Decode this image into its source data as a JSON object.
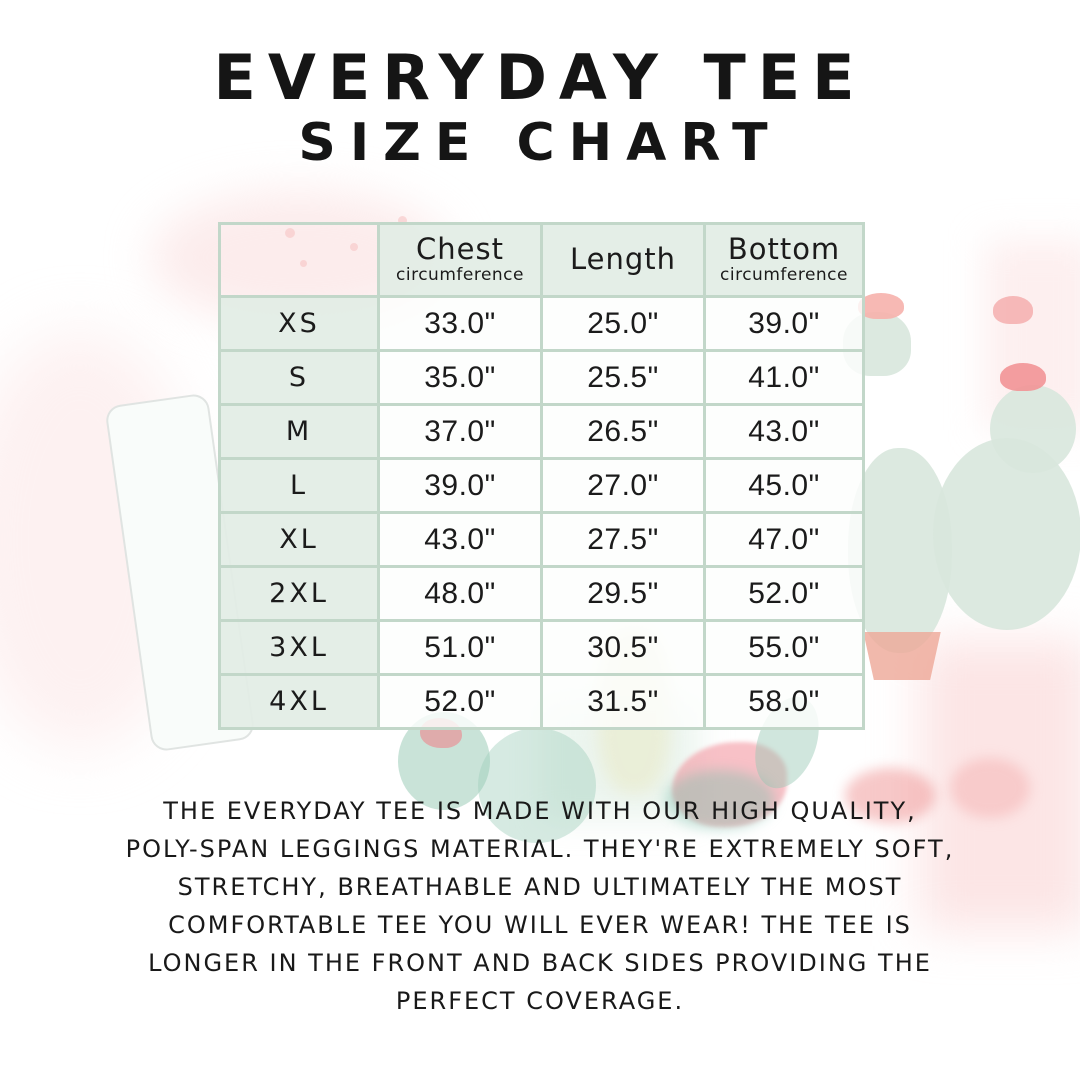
{
  "page": {
    "title_line1": "EVERYDAY TEE",
    "title_line2": "SIZE CHART",
    "description_lines": [
      "THE EVERYDAY TEE IS MADE WITH OUR HIGH QUALITY,",
      "POLY-SPAN LEGGINGS MATERIAL. THEY'RE EXTREMELY SOFT,",
      "STRETCHY, BREATHABLE AND ULTIMATELY THE MOST",
      "COMFORTABLE TEE YOU WILL EVER WEAR! THE TEE IS",
      "LONGER IN THE FRONT AND BACK SIDES PROVIDING THE",
      "PERFECT COVERAGE."
    ]
  },
  "chart_data": {
    "type": "table",
    "title": "Everyday Tee Size Chart",
    "columns": [
      {
        "label": "Chest",
        "sublabel": "circumference"
      },
      {
        "label": "Length",
        "sublabel": ""
      },
      {
        "label": "Bottom",
        "sublabel": "circumference"
      }
    ],
    "rows": [
      {
        "size": "XS",
        "chest": "33.0\"",
        "length": "25.0\"",
        "bottom": "39.0\""
      },
      {
        "size": "S",
        "chest": "35.0\"",
        "length": "25.5\"",
        "bottom": "41.0\""
      },
      {
        "size": "M",
        "chest": "37.0\"",
        "length": "26.5\"",
        "bottom": "43.0\""
      },
      {
        "size": "L",
        "chest": "39.0\"",
        "length": "27.0\"",
        "bottom": "45.0\""
      },
      {
        "size": "XL",
        "chest": "43.0\"",
        "length": "27.5\"",
        "bottom": "47.0\""
      },
      {
        "size": "2XL",
        "chest": "48.0\"",
        "length": "29.5\"",
        "bottom": "52.0\""
      },
      {
        "size": "3XL",
        "chest": "51.0\"",
        "length": "30.5\"",
        "bottom": "55.0\""
      },
      {
        "size": "4XL",
        "chest": "52.0\"",
        "length": "31.5\"",
        "bottom": "58.0\""
      }
    ]
  },
  "colors": {
    "table_border": "#c2d7c9",
    "header_cell_bg": "#e2ede5",
    "value_cell_bg": "#fbfdfb",
    "text": "#191919",
    "watermark_green": "#d8e7dd",
    "watermark_pink": "#f6b1ac",
    "watermark_coral_pot": "#eea797"
  }
}
